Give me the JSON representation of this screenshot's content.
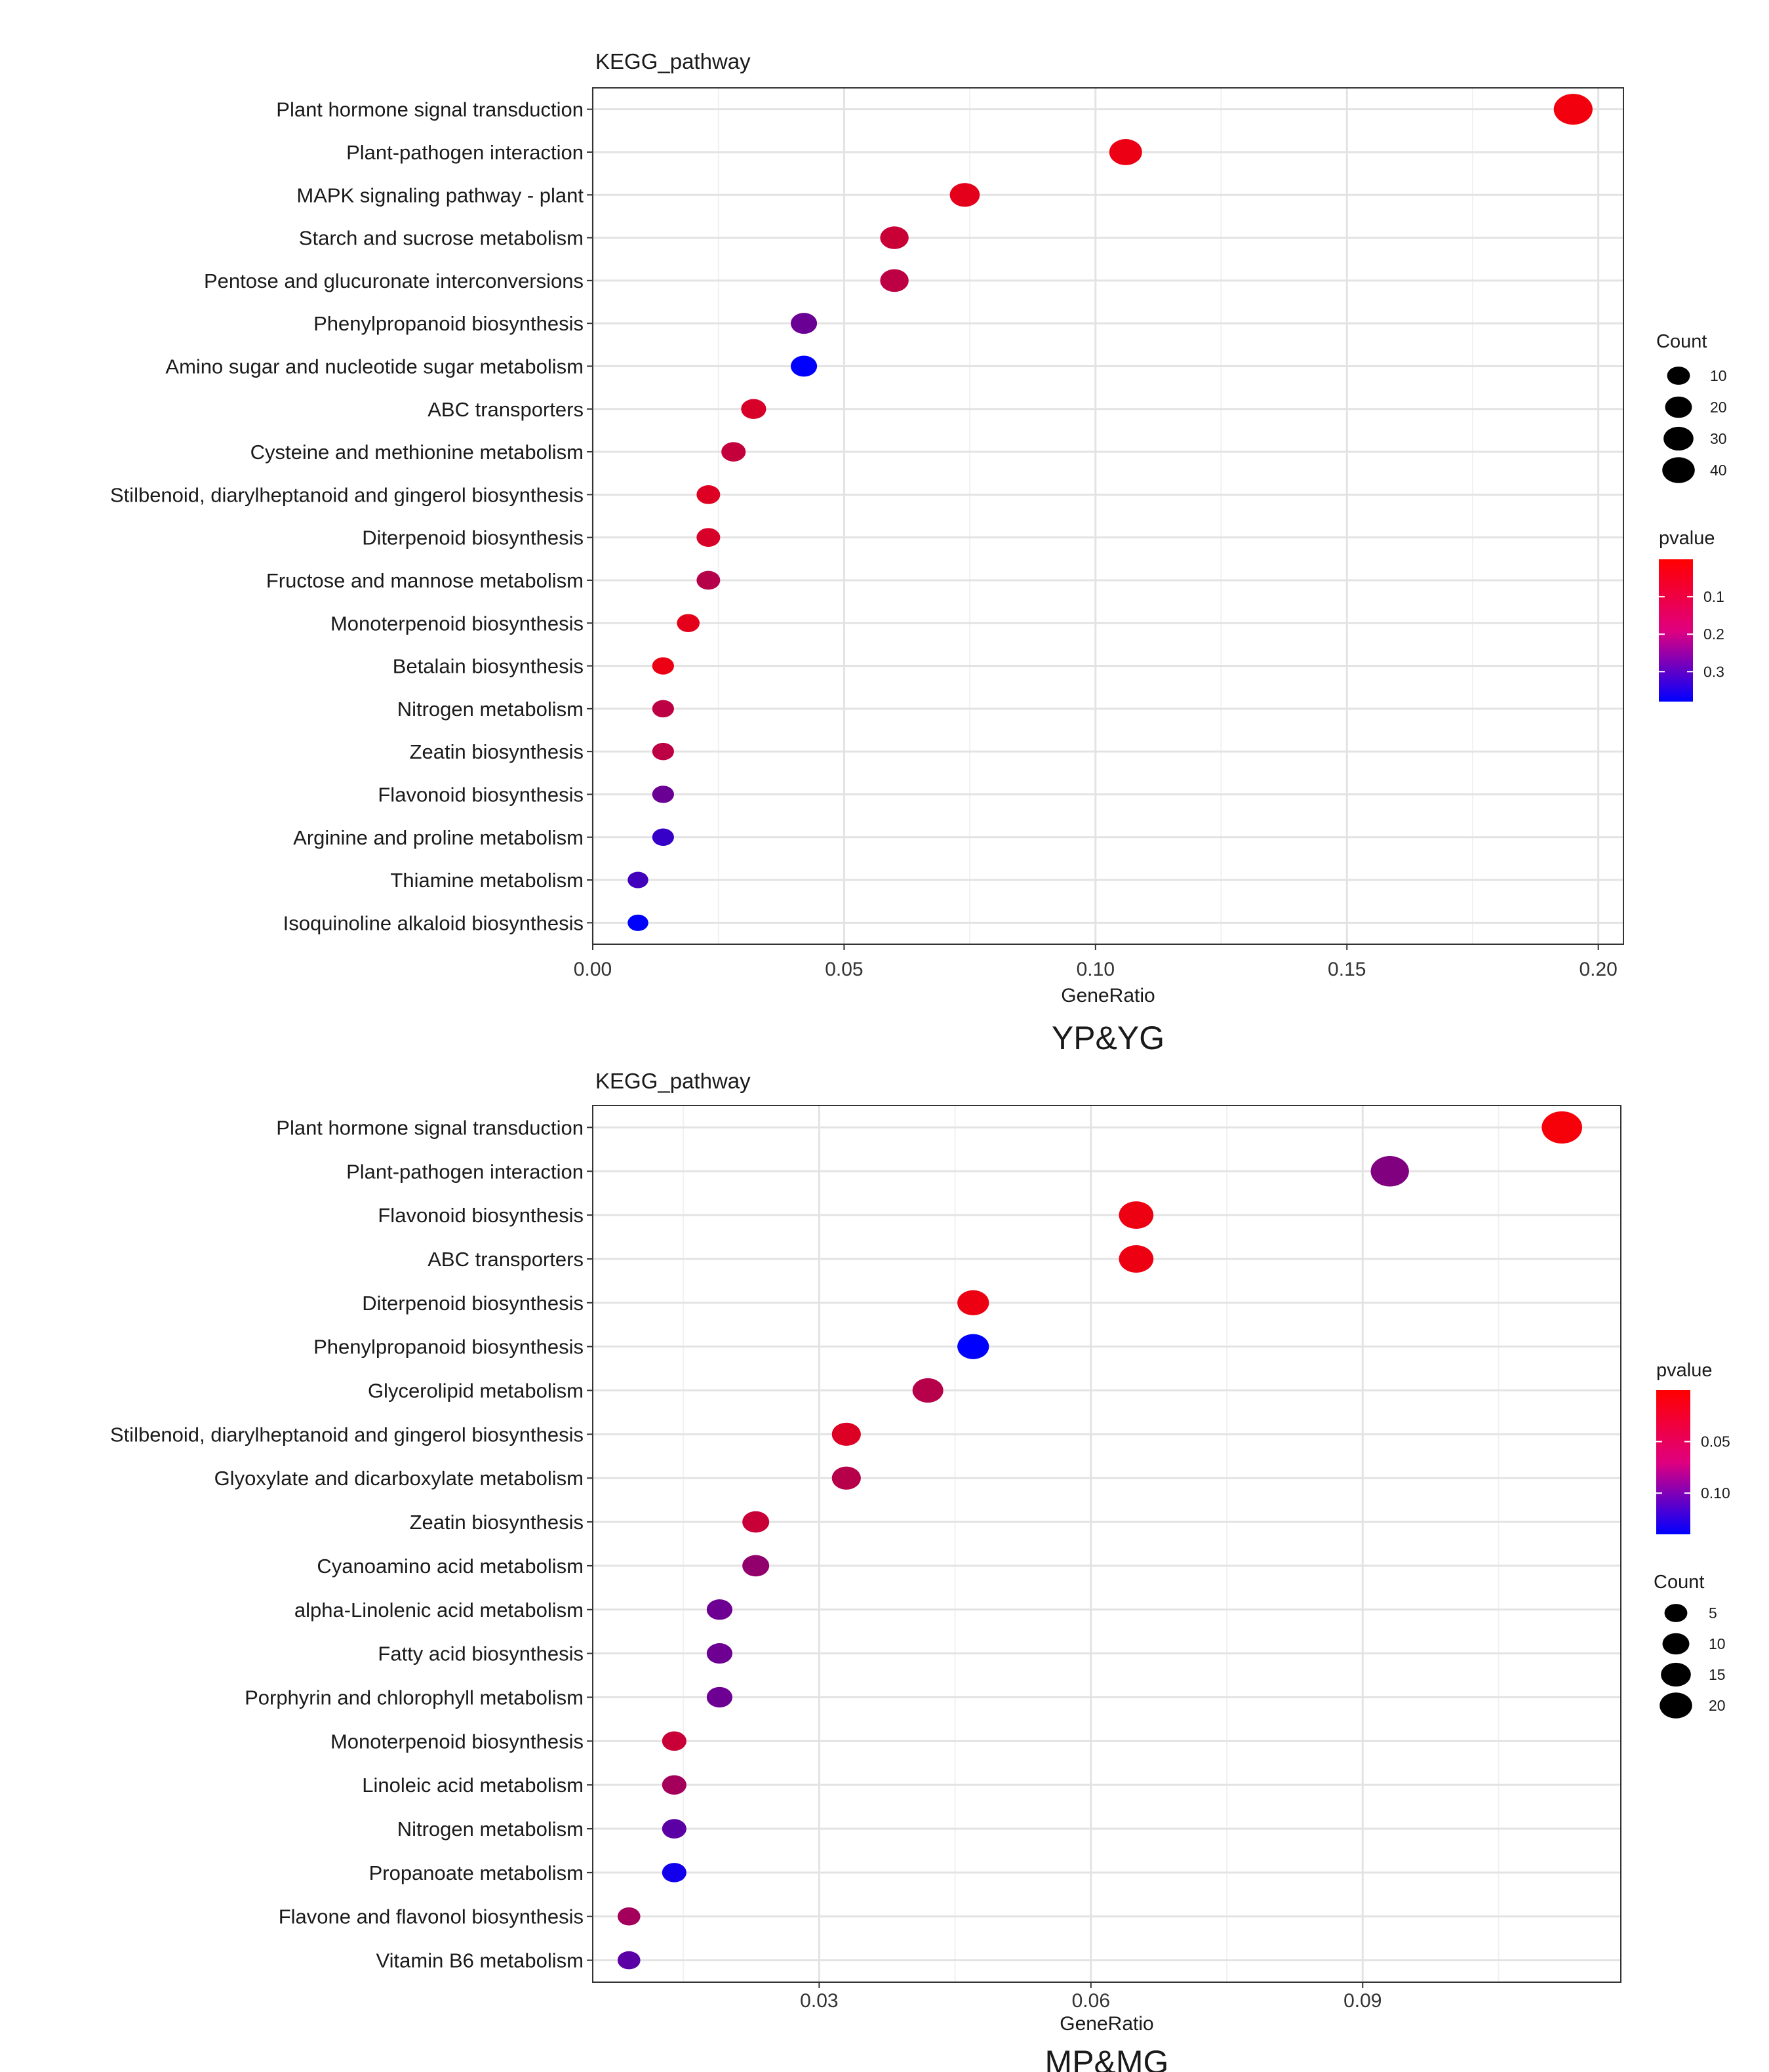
{
  "chart_data": [
    {
      "type": "scatter",
      "panel_title": "KEGG_pathway",
      "xlabel": "GeneRatio",
      "caption": "YP&YG",
      "xlim": [
        0.0,
        0.205
      ],
      "xticks": [
        0.0,
        0.05,
        0.1,
        0.15,
        0.2
      ],
      "xtick_labels": [
        "0.00",
        "0.05",
        "0.10",
        "0.15",
        "0.20"
      ],
      "categories": [
        "Plant hormone signal transduction",
        "Plant-pathogen interaction",
        "MAPK signaling pathway - plant",
        "Starch and sucrose metabolism",
        "Pentose and glucuronate interconversions",
        "Phenylpropanoid biosynthesis",
        "Amino sugar and nucleotide sugar metabolism",
        "ABC transporters",
        "Cysteine and methionine metabolism",
        "Stilbenoid, diarylheptanoid and gingerol biosynthesis",
        "Diterpenoid biosynthesis",
        "Fructose and mannose metabolism",
        "Monoterpenoid biosynthesis",
        "Betalain biosynthesis",
        "Nitrogen metabolism",
        "Zeatin biosynthesis",
        "Flavonoid biosynthesis",
        "Arginine and proline metabolism",
        "Thiamine metabolism",
        "Isoquinoline alkaloid biosynthesis"
      ],
      "gene_ratio": [
        0.195,
        0.106,
        0.074,
        0.06,
        0.06,
        0.042,
        0.042,
        0.032,
        0.028,
        0.023,
        0.023,
        0.023,
        0.019,
        0.014,
        0.014,
        0.014,
        0.014,
        0.014,
        0.009,
        0.009
      ],
      "count": [
        42,
        23,
        16,
        13,
        13,
        9,
        9,
        7,
        6,
        5,
        5,
        5,
        4,
        3,
        3,
        3,
        3,
        3,
        2,
        2
      ],
      "pvalue": [
        0.02,
        0.03,
        0.04,
        0.08,
        0.1,
        0.22,
        0.38,
        0.06,
        0.09,
        0.05,
        0.06,
        0.11,
        0.04,
        0.03,
        0.1,
        0.1,
        0.22,
        0.3,
        0.28,
        0.38
      ],
      "size_legend": {
        "title": "Count",
        "values": [
          10,
          20,
          30,
          40
        ],
        "labels": [
          "10",
          "20",
          "30",
          "40"
        ]
      },
      "color_legend": {
        "title": "pvalue",
        "range": [
          0.0,
          0.38
        ],
        "ticks": [
          0.1,
          0.2,
          0.3
        ],
        "tick_labels": [
          "0.1",
          "0.2",
          "0.3"
        ],
        "low_color": "#ff0000",
        "high_color": "#0000ff"
      }
    },
    {
      "type": "scatter",
      "panel_title": "KEGG_pathway",
      "xlabel": "GeneRatio",
      "caption": "MP&MG",
      "xlim": [
        0.005,
        0.1185
      ],
      "xticks": [
        0.03,
        0.06,
        0.09
      ],
      "xtick_labels": [
        "0.03",
        "0.06",
        "0.09"
      ],
      "categories": [
        "Plant hormone signal transduction",
        "Plant-pathogen interaction",
        "Flavonoid biosynthesis",
        "ABC transporters",
        "Diterpenoid biosynthesis",
        "Phenylpropanoid biosynthesis",
        "Glycerolipid metabolism",
        "Stilbenoid, diarylheptanoid and gingerol biosynthesis",
        "Glyoxylate and dicarboxylate metabolism",
        "Zeatin biosynthesis",
        "Cyanoamino acid metabolism",
        "alpha-Linolenic acid metabolism",
        "Fatty acid biosynthesis",
        "Porphyrin and chlorophyll metabolism",
        "Monoterpenoid biosynthesis",
        "Linoleic acid metabolism",
        "Nitrogen metabolism",
        "Propanoate metabolism",
        "Flavone and flavonol biosynthesis",
        "Vitamin B6 metabolism"
      ],
      "gene_ratio": [
        0.112,
        0.093,
        0.065,
        0.065,
        0.047,
        0.047,
        0.042,
        0.033,
        0.033,
        0.023,
        0.023,
        0.019,
        0.019,
        0.019,
        0.014,
        0.014,
        0.014,
        0.014,
        0.009,
        0.009
      ],
      "count": [
        24,
        20,
        14,
        14,
        10,
        10,
        9,
        7,
        7,
        5,
        5,
        4,
        4,
        4,
        3,
        3,
        3,
        3,
        2,
        2
      ],
      "pvalue": [
        0.005,
        0.07,
        0.01,
        0.01,
        0.01,
        0.14,
        0.04,
        0.02,
        0.04,
        0.03,
        0.06,
        0.08,
        0.08,
        0.08,
        0.03,
        0.05,
        0.09,
        0.13,
        0.05,
        0.09
      ],
      "size_legend": {
        "title": "Count",
        "values": [
          5,
          10,
          15,
          20
        ],
        "labels": [
          "5",
          "10",
          "15",
          "20"
        ]
      },
      "color_legend": {
        "title": "pvalue",
        "range": [
          0.0,
          0.14
        ],
        "ticks": [
          0.05,
          0.1
        ],
        "tick_labels": [
          "0.05",
          "0.10"
        ],
        "low_color": "#ff0000",
        "high_color": "#0000ff"
      }
    }
  ]
}
